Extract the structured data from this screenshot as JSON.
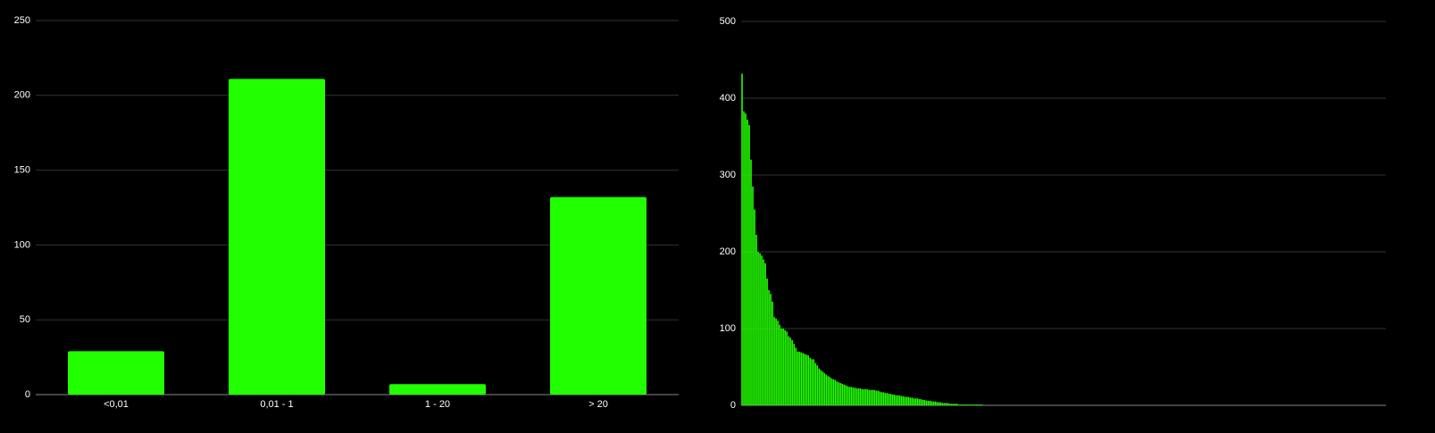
{
  "chart_data": [
    {
      "type": "bar",
      "categories": [
        "<0,01",
        "0,01 - 1",
        "1 - 20",
        "> 20"
      ],
      "values": [
        29,
        211,
        7,
        132
      ],
      "color": "#22ff00",
      "ylim": [
        0,
        250
      ],
      "yticks": [
        0,
        50,
        100,
        150,
        200,
        250
      ],
      "grid": true
    },
    {
      "type": "bar",
      "values": [
        432,
        383,
        380,
        372,
        365,
        320,
        285,
        255,
        222,
        200,
        198,
        195,
        190,
        185,
        165,
        150,
        145,
        135,
        115,
        113,
        110,
        105,
        100,
        100,
        98,
        96,
        90,
        88,
        85,
        80,
        75,
        70,
        70,
        69,
        68,
        67,
        66,
        65,
        62,
        60,
        60,
        55,
        52,
        48,
        46,
        44,
        42,
        40,
        38,
        37,
        35,
        34,
        33,
        31,
        30,
        29,
        28,
        27,
        26,
        25,
        24,
        24,
        23,
        23,
        22,
        22,
        22,
        21,
        21,
        21,
        21,
        20,
        20,
        20,
        20,
        19,
        19,
        18,
        17,
        17,
        16,
        16,
        15,
        15,
        14,
        14,
        13,
        13,
        13,
        12,
        12,
        11,
        11,
        11,
        10,
        10,
        9,
        9,
        9,
        8,
        8,
        7,
        7,
        6,
        6,
        6,
        5,
        5,
        5,
        4,
        4,
        4,
        3,
        3,
        3,
        3,
        2,
        2,
        2,
        2,
        2,
        1,
        1,
        1,
        1,
        1,
        1,
        1,
        1,
        1,
        1,
        1,
        1,
        1,
        1,
        0,
        0,
        0,
        0,
        0,
        0,
        0,
        0,
        0,
        0,
        0,
        0,
        0,
        0,
        0,
        0,
        0,
        0,
        0,
        0,
        0,
        0,
        0,
        0,
        0,
        0,
        0,
        0,
        0,
        0,
        0,
        0,
        0,
        0,
        0,
        0,
        0,
        0,
        0,
        0,
        0,
        0,
        0,
        0,
        0,
        0,
        0,
        0,
        0,
        0,
        0,
        0,
        0,
        0,
        0,
        0,
        0,
        0,
        0,
        0,
        0,
        0,
        0,
        0,
        0,
        0,
        0,
        0,
        0,
        0,
        0,
        0,
        0,
        0,
        0,
        0,
        0,
        0,
        0,
        0,
        0,
        0,
        0,
        0,
        0,
        0,
        0,
        0,
        0,
        0,
        0,
        0,
        0,
        0,
        0,
        0,
        0,
        0,
        0,
        0,
        0,
        0,
        0,
        0,
        0,
        0,
        0,
        0,
        0,
        0,
        0,
        0,
        0,
        0,
        0,
        0,
        0,
        0,
        0,
        0,
        0,
        0,
        0,
        0,
        0,
        0,
        0,
        0,
        0,
        0,
        0,
        0,
        0,
        0,
        0,
        0,
        0,
        0,
        0,
        0,
        0,
        0,
        0,
        0,
        0,
        0,
        0,
        0,
        0,
        0,
        0,
        0,
        0,
        0,
        0,
        0,
        0,
        0,
        0,
        0,
        0,
        0,
        0,
        0,
        0,
        0,
        0,
        0,
        0,
        0,
        0,
        0,
        0,
        0,
        0,
        0,
        0,
        0,
        0,
        0,
        0,
        0,
        0,
        0,
        0,
        0,
        0,
        0,
        0,
        0,
        0,
        0,
        0,
        0,
        0,
        0,
        0,
        0,
        0,
        0,
        0,
        0,
        0,
        0,
        0,
        0,
        0,
        0,
        0,
        0,
        0,
        0,
        0,
        0,
        0,
        0,
        0,
        0,
        0,
        0,
        0,
        0,
        0,
        0,
        0
      ],
      "color": "#22ff00",
      "ylim": [
        0,
        500
      ],
      "yticks": [
        0,
        100,
        200,
        300,
        400,
        500
      ],
      "grid": true
    }
  ]
}
